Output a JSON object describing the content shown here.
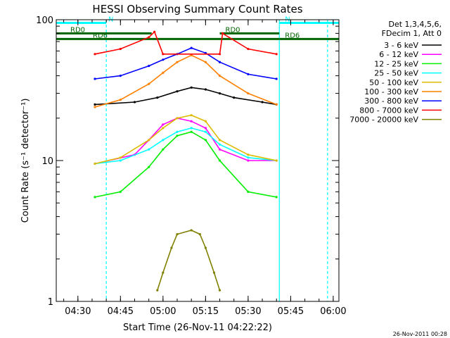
{
  "chart_data": {
    "type": "line",
    "title": "HESSI Observing Summary Count Rates",
    "xlabel": "Start Time (26-Nov-11 04:22:22)",
    "ylabel": "Count Rate (s⁻¹ detector⁻¹)",
    "yscale": "log",
    "ylim": [
      1,
      100
    ],
    "xlim": [
      "04:22:22",
      "06:02:00"
    ],
    "x_ticks": [
      "04:30",
      "04:45",
      "05:00",
      "05:15",
      "05:30",
      "05:45",
      "06:00"
    ],
    "y_ticks": [
      "1",
      "10",
      "100"
    ],
    "legend_header": [
      "Det 1,3,4,5,6,",
      "FDecim 1, Att 0"
    ],
    "legend_placement": "right",
    "grid": false,
    "series": [
      {
        "name": "3 - 6 keV",
        "color": "#000000",
        "x": [
          "04:36",
          "04:50",
          "04:58",
          "05:05",
          "05:10",
          "05:15",
          "05:20",
          "05:25",
          "05:35",
          "05:40"
        ],
        "values": [
          25,
          26,
          28,
          31,
          33,
          32,
          30,
          28,
          26,
          25
        ]
      },
      {
        "name": "6 - 12 keV",
        "color": "#ff00ff",
        "x": [
          "04:36",
          "04:50",
          "04:55",
          "05:00",
          "05:05",
          "05:10",
          "05:15",
          "05:20",
          "05:30",
          "05:40"
        ],
        "values": [
          9.5,
          11,
          14,
          18,
          20,
          19,
          17,
          12,
          10,
          10
        ]
      },
      {
        "name": "12 - 25 keV",
        "color": "#00ee00",
        "x": [
          "04:36",
          "04:45",
          "04:55",
          "05:00",
          "05:05",
          "05:10",
          "05:15",
          "05:20",
          "05:30",
          "05:40"
        ],
        "values": [
          5.5,
          6,
          9,
          12,
          15,
          16,
          14,
          10,
          6,
          5.5
        ]
      },
      {
        "name": "25 - 50 keV",
        "color": "#00ffff",
        "x": [
          "04:36",
          "04:45",
          "04:55",
          "05:00",
          "05:05",
          "05:10",
          "05:15",
          "05:20",
          "05:30",
          "05:40"
        ],
        "values": [
          9.5,
          10,
          12,
          14,
          16,
          17,
          16,
          13,
          10.5,
          10
        ]
      },
      {
        "name": "50 - 100 keV",
        "color": "#ddbb00",
        "x": [
          "04:36",
          "04:45",
          "04:55",
          "05:00",
          "05:05",
          "05:10",
          "05:15",
          "05:20",
          "05:30",
          "05:40"
        ],
        "values": [
          9.5,
          10.5,
          14,
          17,
          20,
          21,
          19,
          14,
          11,
          10
        ]
      },
      {
        "name": "100 - 300 keV",
        "color": "#ff8000",
        "x": [
          "04:36",
          "04:45",
          "04:55",
          "05:00",
          "05:05",
          "05:10",
          "05:15",
          "05:20",
          "05:30",
          "05:40"
        ],
        "values": [
          24,
          27,
          35,
          42,
          50,
          56,
          50,
          40,
          30,
          25
        ]
      },
      {
        "name": "300 - 800 keV",
        "color": "#0000ff",
        "x": [
          "04:36",
          "04:45",
          "04:55",
          "05:00",
          "05:05",
          "05:10",
          "05:15",
          "05:20",
          "05:30",
          "05:40"
        ],
        "values": [
          38,
          40,
          47,
          52,
          57,
          63,
          58,
          50,
          41,
          38
        ]
      },
      {
        "name": "800 - 7000 keV",
        "color": "#ff0000",
        "x": [
          "04:36",
          "04:45",
          "04:55",
          "04:57",
          "05:00",
          "05:20",
          "05:21",
          "05:30",
          "05:40"
        ],
        "values": [
          57,
          62,
          75,
          82,
          57,
          57,
          80,
          62,
          57
        ]
      },
      {
        "name": "7000 - 20000 keV",
        "color": "#808000",
        "x": [
          "04:58",
          "05:00",
          "05:03",
          "05:05",
          "05:10",
          "05:13",
          "05:15",
          "05:18",
          "05:20"
        ],
        "values": [
          1.2,
          1.6,
          2.4,
          3,
          3.2,
          3,
          2.4,
          1.6,
          1.2
        ]
      }
    ],
    "annotations": [
      {
        "label": "N",
        "color": "#00ffff",
        "x_start": "04:22:22",
        "x_end": "04:40",
        "y": 95
      },
      {
        "label": "N",
        "color": "#00ffff",
        "x_start": "05:41",
        "x_end": "06:02",
        "y": 95
      },
      {
        "label": "RD0",
        "color": "#006400",
        "x_start": "04:22:22",
        "x_end": "04:56",
        "y": 80
      },
      {
        "label": "RD0",
        "color": "#006400",
        "x_start": "05:20",
        "x_end": "05:41",
        "y": 80
      },
      {
        "label": "RD6",
        "color": "#006400",
        "x_start": "04:22:22",
        "x_end": "05:41",
        "y": 73
      },
      {
        "label": "RD6",
        "color": "#006400",
        "x_start": "05:41",
        "x_end": "06:02",
        "y": 73
      }
    ],
    "vertical_markers": [
      {
        "x": "04:40",
        "color": "#00ffff",
        "style": "dashed"
      },
      {
        "x": "05:41",
        "color": "#00ffff",
        "style": "solid"
      },
      {
        "x": "05:58",
        "color": "#00ffff",
        "style": "dashed"
      }
    ]
  },
  "footer": {
    "timestamp": "26-Nov-2011 00:28"
  }
}
